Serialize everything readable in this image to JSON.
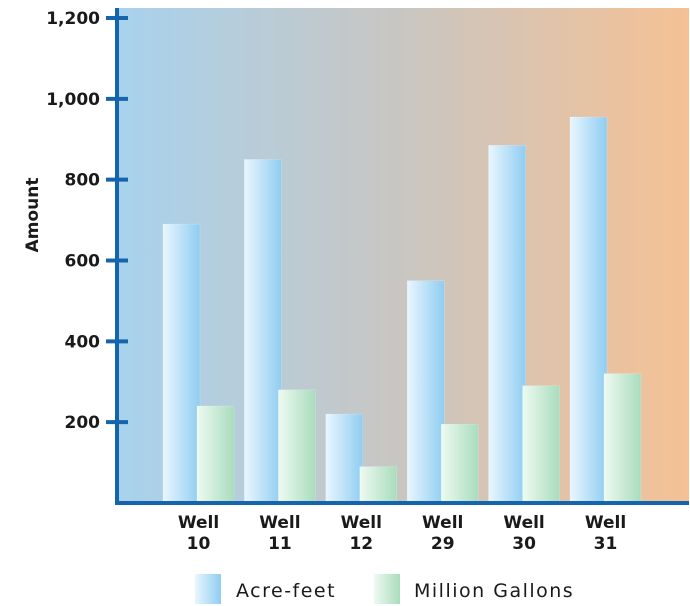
{
  "chart_data": {
    "type": "bar",
    "title": "",
    "xlabel": "",
    "ylabel": "Amount",
    "ylim": [
      0,
      1200
    ],
    "yticks": [
      200,
      400,
      600,
      800,
      1000,
      1200
    ],
    "ytick_labels": [
      "200",
      "400",
      "600",
      "800",
      "1,000",
      "1,200"
    ],
    "categories": [
      [
        "Well",
        "10"
      ],
      [
        "Well",
        "11"
      ],
      [
        "Well",
        "12"
      ],
      [
        "Well",
        "29"
      ],
      [
        "Well",
        "30"
      ],
      [
        "Well",
        "31"
      ]
    ],
    "series": [
      {
        "name": "Acre-feet",
        "values": [
          690,
          850,
          220,
          550,
          885,
          955
        ]
      },
      {
        "name": "Million Gallons",
        "values": [
          240,
          280,
          90,
          195,
          290,
          320
        ]
      }
    ],
    "legend_position": "bottom",
    "grid": false
  },
  "colors": {
    "background_left": "#a8d2ee",
    "background_right": "#f5c195",
    "axis": "#1565ad",
    "series_1_light": "#e9f6ff",
    "series_1_dark": "#8fcdf1",
    "series_2_light": "#eefaf1",
    "series_2_dark": "#a9dcbd"
  }
}
